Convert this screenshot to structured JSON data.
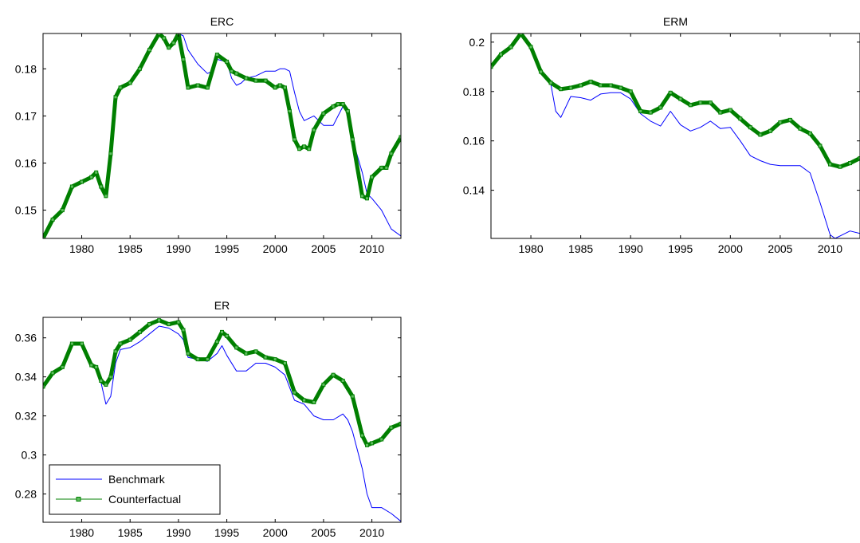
{
  "chart_data": [
    {
      "type": "line",
      "title": "ERC",
      "xlabel": "",
      "ylabel": "",
      "xlim": [
        1976,
        2013
      ],
      "ylim": [
        0.144,
        0.1875
      ],
      "xticks": [
        1980,
        1985,
        1990,
        1995,
        2000,
        2005,
        2010
      ],
      "xtick_labels": [
        "1980",
        "1985",
        "1990",
        "1995",
        "2000",
        "2005",
        "2010"
      ],
      "yticks": [
        0.15,
        0.16,
        0.17,
        0.18
      ],
      "ytick_labels": [
        "0.15",
        "0.16",
        "0.17",
        "0.18"
      ],
      "grid": false,
      "series": [
        {
          "name": "Benchmark",
          "color": "#0000ff",
          "x": [
            1976,
            1977,
            1978,
            1979,
            1980,
            1981,
            1981.5,
            1982,
            1982.5,
            1983,
            1983.5,
            1984,
            1985,
            1986,
            1987,
            1988,
            1988.5,
            1989,
            1989.5,
            1990,
            1990.5,
            1991,
            1992,
            1993,
            1993.5,
            1994,
            1995,
            1995.5,
            1996,
            1996.5,
            1997,
            1998,
            1999,
            2000,
            2000.5,
            2001,
            2001.5,
            2002,
            2002.5,
            2003,
            2004,
            2005,
            2006,
            2006.5,
            2007,
            2007.5,
            2008,
            2009,
            2009.5,
            2010,
            2011,
            2012,
            2013
          ],
          "y": [
            0.144,
            0.148,
            0.15,
            0.155,
            0.156,
            0.157,
            0.158,
            0.155,
            0.153,
            0.162,
            0.174,
            0.176,
            0.177,
            0.18,
            0.184,
            0.1875,
            0.1865,
            0.1845,
            0.1855,
            0.1875,
            0.187,
            0.184,
            0.181,
            0.179,
            0.1795,
            0.182,
            0.1815,
            0.178,
            0.1765,
            0.177,
            0.178,
            0.1785,
            0.1795,
            0.1795,
            0.18,
            0.18,
            0.1795,
            0.175,
            0.171,
            0.169,
            0.17,
            0.168,
            0.168,
            0.17,
            0.172,
            0.171,
            0.165,
            0.158,
            0.1535,
            0.1525,
            0.15,
            0.146,
            0.1445
          ]
        },
        {
          "name": "Counterfactual",
          "color": "#007f00",
          "x": [
            1976,
            1977,
            1978,
            1979,
            1980,
            1981,
            1981.5,
            1982,
            1982.5,
            1983,
            1983.5,
            1984,
            1985,
            1986,
            1987,
            1988,
            1988.5,
            1989,
            1989.5,
            1990,
            1990.5,
            1991,
            1992,
            1993,
            1994,
            1995,
            1995.5,
            1996,
            1997,
            1998,
            1999,
            2000,
            2000.5,
            2001,
            2001.5,
            2002,
            2002.5,
            2003,
            2003.5,
            2004,
            2005,
            2006,
            2006.5,
            2007,
            2007.5,
            2008,
            2009,
            2009.5,
            2010,
            2011,
            2011.5,
            2012,
            2013
          ],
          "y": [
            0.144,
            0.148,
            0.15,
            0.155,
            0.156,
            0.157,
            0.158,
            0.155,
            0.153,
            0.162,
            0.174,
            0.176,
            0.177,
            0.18,
            0.184,
            0.1875,
            0.1865,
            0.1845,
            0.1855,
            0.1875,
            0.182,
            0.176,
            0.1765,
            0.176,
            0.183,
            0.1815,
            0.1795,
            0.179,
            0.178,
            0.1775,
            0.1775,
            0.176,
            0.1765,
            0.176,
            0.171,
            0.165,
            0.163,
            0.1635,
            0.163,
            0.167,
            0.1705,
            0.172,
            0.1725,
            0.1725,
            0.171,
            0.165,
            0.153,
            0.1525,
            0.157,
            0.159,
            0.159,
            0.162,
            0.1655
          ]
        }
      ]
    },
    {
      "type": "line",
      "title": "ERM",
      "xlabel": "",
      "ylabel": "",
      "xlim": [
        1976,
        2013
      ],
      "ylim": [
        0.1205,
        0.2035
      ],
      "xticks": [
        1980,
        1985,
        1990,
        1995,
        2000,
        2005,
        2010
      ],
      "xtick_labels": [
        "1980",
        "1985",
        "1990",
        "1995",
        "2000",
        "2005",
        "2010"
      ],
      "yticks": [
        0.14,
        0.16,
        0.18,
        0.2
      ],
      "ytick_labels": [
        "0.14",
        "0.16",
        "0.18",
        "0.2"
      ],
      "grid": false,
      "series": [
        {
          "name": "Benchmark",
          "color": "#0000ff",
          "x": [
            1976,
            1977,
            1978,
            1979,
            1980,
            1981,
            1982,
            1982.5,
            1983,
            1984,
            1985,
            1986,
            1987,
            1988,
            1989,
            1990,
            1991,
            1992,
            1993,
            1994,
            1995,
            1996,
            1997,
            1998,
            1999,
            2000,
            2001,
            2002,
            2003,
            2004,
            2005,
            2006,
            2007,
            2008,
            2009,
            2010,
            2010.5,
            2011,
            2012,
            2013
          ],
          "y": [
            0.19,
            0.195,
            0.198,
            0.2035,
            0.198,
            0.188,
            0.183,
            0.172,
            0.1695,
            0.178,
            0.1775,
            0.1765,
            0.179,
            0.1795,
            0.1795,
            0.177,
            0.171,
            0.168,
            0.166,
            0.172,
            0.1665,
            0.164,
            0.1655,
            0.168,
            0.165,
            0.1655,
            0.16,
            0.154,
            0.152,
            0.1505,
            0.15,
            0.15,
            0.15,
            0.147,
            0.135,
            0.122,
            0.1205,
            0.1215,
            0.1235,
            0.1225
          ]
        },
        {
          "name": "Counterfactual",
          "color": "#007f00",
          "x": [
            1976,
            1977,
            1978,
            1979,
            1980,
            1981,
            1982,
            1983,
            1984,
            1985,
            1986,
            1987,
            1988,
            1989,
            1990,
            1991,
            1992,
            1993,
            1994,
            1995,
            1996,
            1997,
            1998,
            1999,
            2000,
            2001,
            2002,
            2003,
            2004,
            2005,
            2006,
            2007,
            2008,
            2009,
            2010,
            2011,
            2012,
            2013
          ],
          "y": [
            0.19,
            0.195,
            0.198,
            0.2035,
            0.198,
            0.188,
            0.1835,
            0.181,
            0.1815,
            0.1825,
            0.184,
            0.1825,
            0.1825,
            0.1815,
            0.18,
            0.172,
            0.1715,
            0.1735,
            0.1795,
            0.177,
            0.1745,
            0.1755,
            0.1755,
            0.1715,
            0.1725,
            0.169,
            0.1655,
            0.1625,
            0.164,
            0.1675,
            0.1685,
            0.165,
            0.163,
            0.158,
            0.1505,
            0.1495,
            0.151,
            0.153
          ]
        }
      ]
    },
    {
      "type": "line",
      "title": "ER",
      "xlabel": "",
      "ylabel": "",
      "xlim": [
        1976,
        2013
      ],
      "ylim": [
        0.2655,
        0.3705
      ],
      "xticks": [
        1980,
        1985,
        1990,
        1995,
        2000,
        2005,
        2010
      ],
      "xtick_labels": [
        "1980",
        "1985",
        "1990",
        "1995",
        "2000",
        "2005",
        "2010"
      ],
      "yticks": [
        0.28,
        0.3,
        0.32,
        0.34,
        0.36
      ],
      "ytick_labels": [
        "0.28",
        "0.3",
        "0.32",
        "0.34",
        "0.36"
      ],
      "grid": false,
      "legend": {
        "position": "bottom-left",
        "entries": [
          "Benchmark",
          "Counterfactual"
        ]
      },
      "series": [
        {
          "name": "Benchmark",
          "color": "#0000ff",
          "x": [
            1976,
            1977,
            1978,
            1979,
            1980,
            1981,
            1981.5,
            1982,
            1982.5,
            1983,
            1983.5,
            1984,
            1985,
            1986,
            1987,
            1988,
            1989,
            1990,
            1990.5,
            1991,
            1992,
            1993,
            1994,
            1994.5,
            1995,
            1996,
            1997,
            1998,
            1999,
            2000,
            2001,
            2002,
            2003,
            2004,
            2005,
            2006,
            2007,
            2007.5,
            2008,
            2009,
            2009.5,
            2010,
            2011,
            2012,
            2013
          ],
          "y": [
            0.335,
            0.342,
            0.345,
            0.357,
            0.357,
            0.346,
            0.344,
            0.337,
            0.326,
            0.33,
            0.347,
            0.354,
            0.355,
            0.358,
            0.362,
            0.366,
            0.365,
            0.362,
            0.359,
            0.35,
            0.349,
            0.348,
            0.352,
            0.356,
            0.351,
            0.343,
            0.343,
            0.347,
            0.347,
            0.345,
            0.341,
            0.328,
            0.326,
            0.32,
            0.318,
            0.318,
            0.321,
            0.318,
            0.312,
            0.293,
            0.28,
            0.273,
            0.273,
            0.27,
            0.266
          ]
        },
        {
          "name": "Counterfactual",
          "color": "#007f00",
          "x": [
            1976,
            1977,
            1978,
            1979,
            1980,
            1981,
            1981.5,
            1982,
            1982.5,
            1983,
            1983.5,
            1984,
            1985,
            1986,
            1987,
            1988,
            1989,
            1990,
            1990.5,
            1991,
            1992,
            1993,
            1994,
            1994.5,
            1995,
            1996,
            1997,
            1998,
            1999,
            2000,
            2001,
            2002,
            2003,
            2004,
            2005,
            2006,
            2007,
            2008,
            2009,
            2009.5,
            2010,
            2011,
            2012,
            2013
          ],
          "y": [
            0.335,
            0.342,
            0.345,
            0.357,
            0.357,
            0.346,
            0.345,
            0.338,
            0.336,
            0.34,
            0.353,
            0.357,
            0.359,
            0.363,
            0.367,
            0.369,
            0.367,
            0.368,
            0.364,
            0.352,
            0.349,
            0.349,
            0.358,
            0.363,
            0.361,
            0.355,
            0.352,
            0.353,
            0.35,
            0.349,
            0.347,
            0.332,
            0.328,
            0.327,
            0.336,
            0.341,
            0.338,
            0.33,
            0.31,
            0.305,
            0.306,
            0.308,
            0.314,
            0.316
          ]
        }
      ]
    }
  ]
}
